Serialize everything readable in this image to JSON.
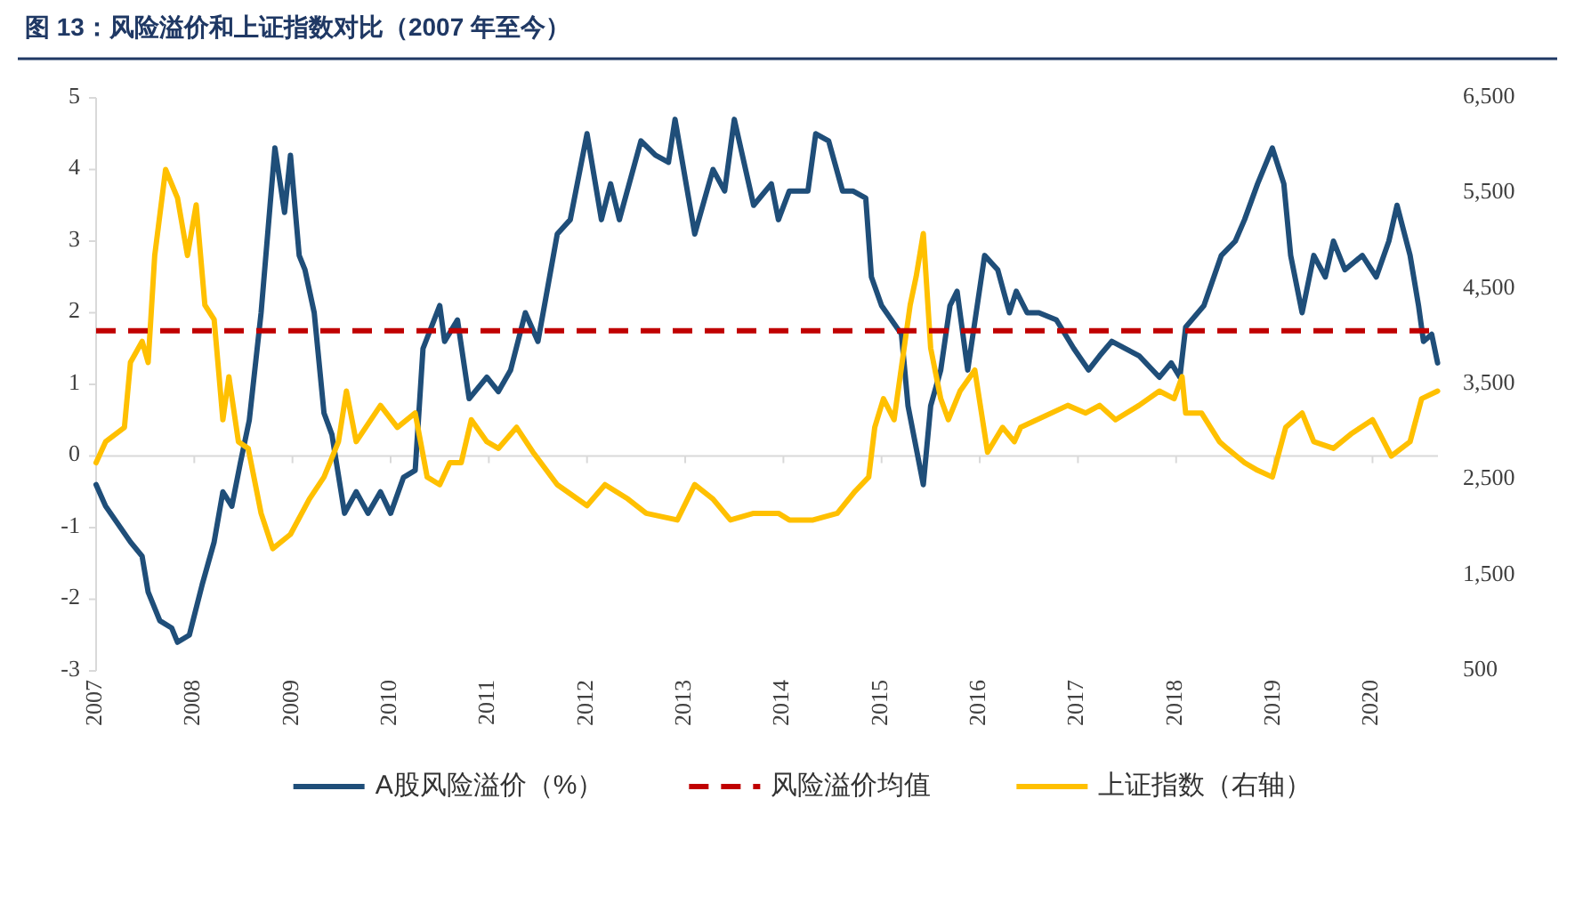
{
  "chart_data": {
    "type": "line",
    "title": "图 13：风险溢价和上证指数对比（2007 年至今）",
    "xlim": [
      "2007-01",
      "2020-09"
    ],
    "xticks": [
      "2007",
      "2008",
      "2009",
      "2010",
      "2011",
      "2012",
      "2013",
      "2014",
      "2015",
      "2016",
      "2017",
      "2018",
      "2019",
      "2020"
    ],
    "ylim": [
      -3,
      5
    ],
    "yticks": [
      -3,
      -2,
      -1,
      0,
      1,
      2,
      3,
      4,
      5
    ],
    "y2lim": [
      500,
      6500
    ],
    "y2ticks": [
      500,
      {
        "value": 1500,
        "label": "1,500"
      },
      {
        "value": 2500,
        "label": "2,500"
      },
      {
        "value": 3500,
        "label": "3,500"
      },
      {
        "value": 4500,
        "label": "4,500"
      },
      {
        "value": 5500,
        "label": "5,500"
      },
      {
        "value": 6500,
        "label": "6,500"
      }
    ],
    "legend": "bottom",
    "line_style": "solid",
    "marker": "none",
    "ref_lines": [
      {
        "axis": "y",
        "value": 1.75,
        "label": "风险溢价均值",
        "color": "#c00000",
        "line_style": "dashed"
      }
    ],
    "series": [
      {
        "name": "A股风险溢价（%）",
        "color": "#1f4e79",
        "x": [
          "2007-01-01",
          "2007-02-06",
          "2007-05-07",
          "2007-06-20",
          "2007-07-12",
          "2007-08-25",
          "2007-10-08",
          "2007-10-30",
          "2007-12-13",
          "2008-01-30",
          "2008-03-14",
          "2008-04-16",
          "2008-05-19",
          "2008-06-20",
          "2008-07-23",
          "2008-09-06",
          "2008-10-09",
          "2008-10-27",
          "2008-12-02",
          "2008-12-24",
          "2009-01-26",
          "2009-02-17",
          "2009-03-21",
          "2009-04-27",
          "2009-05-26",
          "2009-07-12",
          "2009-08-25",
          "2009-10-08",
          "2009-11-24",
          "2010-01-01",
          "2010-02-18",
          "2010-04-01",
          "2010-04-30",
          "2010-07-01",
          "2010-07-19",
          "2010-09-06",
          "2010-10-19",
          "2010-12-24",
          "2011-02-06",
          "2011-03-21",
          "2011-05-15",
          "2011-07-01",
          "2011-07-30",
          "2011-09-12",
          "2011-10-30",
          "2012-01-01",
          "2012-02-24",
          "2012-03-28",
          "2012-04-30",
          "2012-07-19",
          "2012-09-12",
          "2012-10-30",
          "2012-11-24",
          "2013-02-06",
          "2013-04-13",
          "2013-05-26",
          "2013-07-01",
          "2013-09-12",
          "2013-11-17",
          "2013-12-13",
          "2014-01-23",
          "2014-04-01",
          "2014-04-30",
          "2014-06-17",
          "2014-08-08",
          "2014-09-16",
          "2014-11-03",
          "2014-11-24",
          "2015-01-01",
          "2015-03-14",
          "2015-04-08",
          "2015-06-04",
          "2015-07-01",
          "2015-08-08",
          "2015-09-12",
          "2015-10-08",
          "2015-11-17",
          "2016-01-19",
          "2016-03-07",
          "2016-04-20",
          "2016-05-15",
          "2016-06-25",
          "2016-08-08",
          "2016-10-12",
          "2016-12-16",
          "2017-02-10",
          "2017-03-21",
          "2017-05-05",
          "2017-08-15",
          "2017-10-30",
          "2017-12-13",
          "2018-01-15",
          "2018-02-06",
          "2018-04-13",
          "2018-06-17",
          "2018-08-08",
          "2018-09-12",
          "2018-10-30",
          "2018-12-24",
          "2019-02-06",
          "2019-03-01",
          "2019-04-13",
          "2019-05-26",
          "2019-07-08",
          "2019-08-08",
          "2019-09-20",
          "2019-11-24",
          "2020-01-15",
          "2020-03-01",
          "2020-04-01",
          "2020-05-19",
          "2020-06-20",
          "2020-07-08",
          "2020-08-08",
          "2020-08-30"
        ],
        "values": [
          -0.4,
          -0.7,
          -1.2,
          -1.4,
          -1.9,
          -2.3,
          -2.4,
          -2.6,
          -2.5,
          -1.8,
          -1.2,
          -0.5,
          -0.7,
          -0.1,
          0.5,
          2.0,
          3.5,
          4.3,
          3.4,
          4.2,
          2.8,
          2.6,
          2.0,
          0.6,
          0.3,
          -0.8,
          -0.5,
          -0.8,
          -0.5,
          -0.8,
          -0.3,
          -0.2,
          1.5,
          2.1,
          1.6,
          1.9,
          0.8,
          1.1,
          0.9,
          1.2,
          2.0,
          1.6,
          2.2,
          3.1,
          3.3,
          4.5,
          3.3,
          3.8,
          3.3,
          4.4,
          4.2,
          4.1,
          4.7,
          3.1,
          4.0,
          3.7,
          4.7,
          3.5,
          3.8,
          3.3,
          3.7,
          3.7,
          4.5,
          4.4,
          3.7,
          3.7,
          3.6,
          2.5,
          2.1,
          1.7,
          0.7,
          -0.4,
          0.7,
          1.2,
          2.1,
          2.3,
          1.2,
          2.8,
          2.6,
          2.0,
          2.3,
          2.0,
          2.0,
          1.9,
          1.5,
          1.2,
          1.4,
          1.6,
          1.4,
          1.1,
          1.3,
          1.1,
          1.8,
          2.1,
          2.8,
          3.0,
          3.3,
          3.8,
          4.3,
          3.8,
          2.8,
          2.0,
          2.8,
          2.5,
          3.0,
          2.6,
          2.8,
          2.5,
          3.0,
          3.5,
          2.8,
          2.1,
          1.6,
          1.7,
          1.3
        ]
      },
      {
        "name": "上证指数（右轴）",
        "color": "#ffc000",
        "axis": "y2",
        "x": [
          "2007-01-01",
          "2007-02-06",
          "2007-04-15",
          "2007-05-07",
          "2007-06-20",
          "2007-07-12",
          "2007-08-06",
          "2007-09-16",
          "2007-10-30",
          "2007-12-06",
          "2008-01-08",
          "2008-02-10",
          "2008-03-14",
          "2008-04-16",
          "2008-05-08",
          "2008-06-13",
          "2008-07-19",
          "2008-09-06",
          "2008-10-19",
          "2008-12-24",
          "2009-03-03",
          "2009-04-27",
          "2009-06-20",
          "2009-07-19",
          "2009-08-25",
          "2009-11-24",
          "2010-01-26",
          "2010-04-01",
          "2010-05-15",
          "2010-07-01",
          "2010-08-08",
          "2010-09-20",
          "2010-10-27",
          "2010-12-24",
          "2011-02-06",
          "2011-04-13",
          "2011-06-13",
          "2011-09-12",
          "2012-01-01",
          "2012-03-07",
          "2012-06-01",
          "2012-08-08",
          "2012-12-02",
          "2013-02-06",
          "2013-04-13",
          "2013-06-17",
          "2013-09-12",
          "2013-12-13",
          "2014-01-23",
          "2014-04-20",
          "2014-07-19",
          "2014-09-24",
          "2014-11-14",
          "2014-12-06",
          "2015-01-08",
          "2015-02-17",
          "2015-04-16",
          "2015-05-08",
          "2015-06-04",
          "2015-07-01",
          "2015-08-08",
          "2015-09-06",
          "2015-10-19",
          "2015-12-13",
          "2016-01-30",
          "2016-03-25",
          "2016-05-08",
          "2016-06-01",
          "2016-11-24",
          "2017-01-30",
          "2017-03-21",
          "2017-05-19",
          "2017-08-15",
          "2017-10-30",
          "2017-12-24",
          "2018-01-23",
          "2018-02-06",
          "2018-04-04",
          "2018-06-10",
          "2018-07-08",
          "2018-09-12",
          "2018-10-30",
          "2018-12-24",
          "2019-02-13",
          "2019-04-13",
          "2019-05-26",
          "2019-08-08",
          "2019-10-12",
          "2020-01-01",
          "2020-03-10",
          "2020-05-19",
          "2020-07-01",
          "2020-08-30"
        ],
        "values": [
          2680,
          2900,
          3050,
          3730,
          3950,
          3730,
          4850,
          5750,
          5450,
          4850,
          5380,
          4330,
          4180,
          3130,
          3580,
          2900,
          2830,
          2150,
          1780,
          1930,
          2300,
          2530,
          2900,
          3430,
          2900,
          3280,
          3050,
          3200,
          2530,
          2450,
          2680,
          2680,
          3130,
          2900,
          2830,
          3050,
          2790,
          2450,
          2230,
          2450,
          2300,
          2150,
          2080,
          2450,
          2300,
          2080,
          2150,
          2150,
          2080,
          2080,
          2150,
          2380,
          2530,
          3050,
          3350,
          3130,
          4330,
          4630,
          5080,
          3880,
          3350,
          3130,
          3430,
          3650,
          2790,
          3050,
          2900,
          3050,
          3280,
          3200,
          3280,
          3130,
          3280,
          3430,
          3350,
          3580,
          3200,
          3200,
          2900,
          2830,
          2680,
          2600,
          2530,
          3050,
          3200,
          2900,
          2830,
          2980,
          3130,
          2750,
          2900,
          3350,
          3430
        ]
      }
    ]
  }
}
